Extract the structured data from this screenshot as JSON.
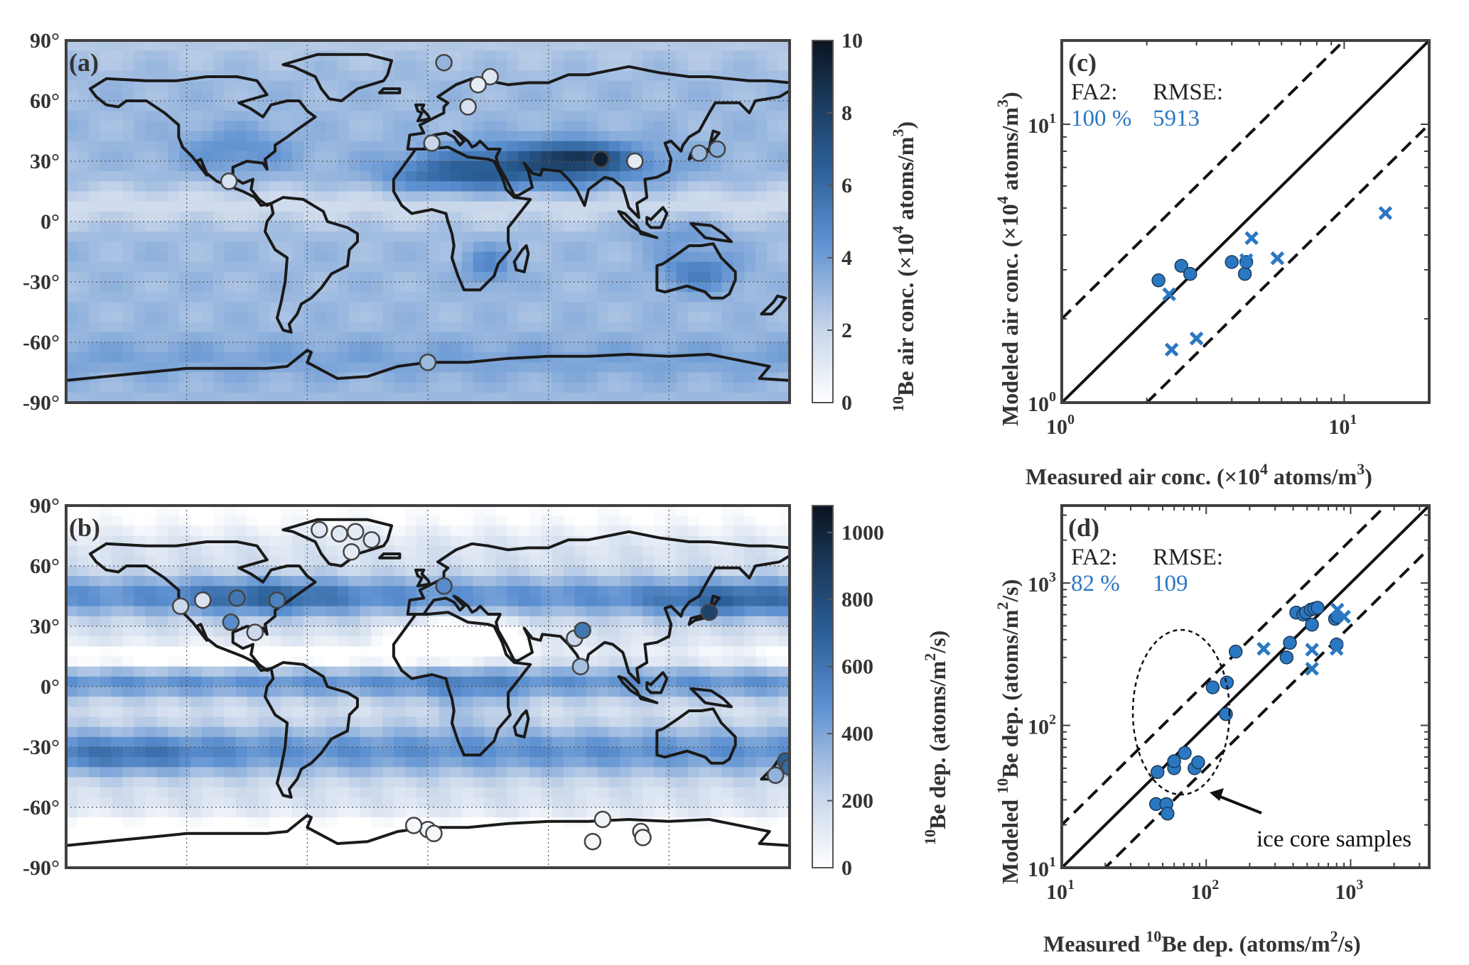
{
  "figure": {
    "panels": {
      "a": {
        "label": "(a)"
      },
      "b": {
        "label": "(b)"
      },
      "c": {
        "label": "(c)"
      },
      "d": {
        "label": "(d)"
      }
    },
    "colors": {
      "accent": "#2a78c2",
      "frame": "#404040",
      "cmap_low": "#ffffff",
      "cmap_mid": "#5b8fd0",
      "cmap_high": "#0b1420"
    }
  },
  "chart_data": [
    {
      "type": "heatmap",
      "panel": "(a)",
      "ylabel_ticks": [
        "90°",
        "60°",
        "30°",
        "0°",
        "-30°",
        "-60°",
        "-90°"
      ],
      "colorbar": {
        "label_pre": "10",
        "label": "Be air conc. (×10",
        "label_sup": "4",
        "label_post": " atoms/m",
        "label_sup2": "3",
        "label_end": ")",
        "ticks": [
          "0",
          "2",
          "4",
          "6",
          "8",
          "10"
        ],
        "range": [
          0,
          10
        ]
      },
      "stations": [
        {
          "lon": 8,
          "lat": 79,
          "v": 3.2
        },
        {
          "lon": 31,
          "lat": 72,
          "v": 1.2
        },
        {
          "lon": 2,
          "lat": 39,
          "v": 2.0
        },
        {
          "lon": -99,
          "lat": 20,
          "v": 1.5
        },
        {
          "lon": 25,
          "lat": 68,
          "v": 0.9
        },
        {
          "lon": 20,
          "lat": 57,
          "v": 1.5
        },
        {
          "lon": 86,
          "lat": 31,
          "v": 9.5
        },
        {
          "lon": 103,
          "lat": 30,
          "v": 1.0
        },
        {
          "lon": 135,
          "lat": 34,
          "v": 3.0
        },
        {
          "lon": 144,
          "lat": 36,
          "v": 3.5
        },
        {
          "lon": 0,
          "lat": -70,
          "v": 3.0
        }
      ]
    },
    {
      "type": "heatmap",
      "panel": "(b)",
      "ylabel_ticks": [
        "90°",
        "60°",
        "30°",
        "0°",
        "-30°",
        "-60°",
        "-90°"
      ],
      "colorbar": {
        "label_pre": "10",
        "label": "Be dep. (atoms/m",
        "label_sup": "2",
        "label_end": "/s)",
        "ticks": [
          "0",
          "200",
          "400",
          "600",
          "800",
          "1000"
        ],
        "range": [
          0,
          1080
        ]
      },
      "stations": [
        {
          "lon": -54,
          "lat": 78,
          "v": 120
        },
        {
          "lon": -44,
          "lat": 76,
          "v": 120
        },
        {
          "lon": -36,
          "lat": 77,
          "v": 100
        },
        {
          "lon": -28,
          "lat": 73,
          "v": 120
        },
        {
          "lon": -38,
          "lat": 67,
          "v": 110
        },
        {
          "lon": -123,
          "lat": 40,
          "v": 200
        },
        {
          "lon": -112,
          "lat": 43,
          "v": 150
        },
        {
          "lon": -95,
          "lat": 44,
          "v": 600
        },
        {
          "lon": -75,
          "lat": 43,
          "v": 550
        },
        {
          "lon": -98,
          "lat": 32,
          "v": 500
        },
        {
          "lon": -86,
          "lat": 27,
          "v": 200
        },
        {
          "lon": 8,
          "lat": 50,
          "v": 500
        },
        {
          "lon": 73,
          "lat": 24,
          "v": 200
        },
        {
          "lon": 77,
          "lat": 28,
          "v": 600
        },
        {
          "lon": 76,
          "lat": 10,
          "v": 300
        },
        {
          "lon": 140,
          "lat": 37,
          "v": 850
        },
        {
          "lon": 173,
          "lat": -44,
          "v": 350
        },
        {
          "lon": 178,
          "lat": -37,
          "v": 700
        },
        {
          "lon": 180,
          "lat": -40,
          "v": 650
        },
        {
          "lon": 0,
          "lat": -71,
          "v": 50
        },
        {
          "lon": -7,
          "lat": -69,
          "v": 40
        },
        {
          "lon": 3,
          "lat": -73,
          "v": 40
        },
        {
          "lon": 87,
          "lat": -66,
          "v": 60
        },
        {
          "lon": 82,
          "lat": -77,
          "v": 40
        },
        {
          "lon": 106,
          "lat": -72,
          "v": 40
        },
        {
          "lon": 107,
          "lat": -75,
          "v": 40
        }
      ]
    },
    {
      "type": "scatter",
      "panel": "(c)",
      "xlabel": "Measured air conc. (×10",
      "xlabel_sup": "4",
      "xlabel_post": " atoms/m",
      "xlabel_sup2": "3",
      "xlabel_end": ")",
      "ylabel": "Modeled air conc. (×10",
      "ylabel_sup": "4",
      "ylabel_post": " atoms/m",
      "ylabel_sup2": "3",
      "ylabel_end": ")",
      "xscale": "log",
      "yscale": "log",
      "xlim": [
        1,
        20
      ],
      "ylim": [
        1,
        20
      ],
      "xticks": [
        {
          "base": "10",
          "exp": "0"
        },
        {
          "base": "10",
          "exp": "1"
        }
      ],
      "yticks": [
        {
          "base": "10",
          "exp": "0"
        },
        {
          "base": "10",
          "exp": "1"
        }
      ],
      "stat_labels": {
        "fa2": "FA2:",
        "rmse": "RMSE:"
      },
      "stat_values": {
        "fa2": "100 %",
        "rmse": "5913"
      },
      "series": [
        {
          "marker": "circle",
          "points": [
            [
              2.2,
              2.75
            ],
            [
              2.65,
              3.1
            ],
            [
              2.85,
              2.9
            ],
            [
              4.0,
              3.2
            ],
            [
              4.45,
              2.9
            ],
            [
              4.5,
              3.2
            ]
          ]
        },
        {
          "marker": "x",
          "points": [
            [
              2.4,
              2.45
            ],
            [
              2.45,
              1.55
            ],
            [
              3.0,
              1.7
            ],
            [
              4.5,
              3.25
            ],
            [
              4.7,
              3.9
            ],
            [
              5.8,
              3.3
            ],
            [
              14.0,
              4.8
            ]
          ]
        }
      ]
    },
    {
      "type": "scatter",
      "panel": "(d)",
      "xlabel_pre": "Measured ",
      "xlabel_sup": "10",
      "xlabel": "Be dep. (atoms/m",
      "xlabel_sup2": "2",
      "xlabel_end": "/s)",
      "ylabel_pre": "Modeled ",
      "ylabel_sup": "10",
      "ylabel": "Be dep. (atoms/m",
      "ylabel_sup2": "2",
      "ylabel_end": "/s)",
      "xscale": "log",
      "yscale": "log",
      "xlim": [
        10,
        3500
      ],
      "ylim": [
        10,
        3500
      ],
      "xticks": [
        {
          "base": "10",
          "exp": "1"
        },
        {
          "base": "10",
          "exp": "2"
        },
        {
          "base": "10",
          "exp": "3"
        }
      ],
      "yticks": [
        {
          "base": "10",
          "exp": "1"
        },
        {
          "base": "10",
          "exp": "2"
        },
        {
          "base": "10",
          "exp": "3"
        }
      ],
      "stat_labels": {
        "fa2": "FA2:",
        "rmse": "RMSE:"
      },
      "stat_values": {
        "fa2": "82 %",
        "rmse": "109"
      },
      "annotation": "ice core samples",
      "series": [
        {
          "marker": "circle",
          "points": [
            [
              46,
              47
            ],
            [
              45,
              28
            ],
            [
              53,
              28
            ],
            [
              54,
              24
            ],
            [
              60,
              50
            ],
            [
              60,
              56
            ],
            [
              71,
              64
            ],
            [
              83,
              50
            ],
            [
              88,
              55
            ],
            [
              111,
              185
            ],
            [
              139,
              200
            ],
            [
              137,
              120
            ],
            [
              160,
              330
            ],
            [
              360,
              300
            ],
            [
              380,
              380
            ],
            [
              420,
              620
            ],
            [
              470,
              600
            ],
            [
              490,
              620
            ],
            [
              530,
              650
            ],
            [
              560,
              660
            ],
            [
              540,
              510
            ],
            [
              590,
              670
            ],
            [
              780,
              560
            ],
            [
              810,
              580
            ],
            [
              800,
              370
            ]
          ]
        },
        {
          "marker": "x",
          "points": [
            [
              250,
              345
            ],
            [
              540,
              340
            ],
            [
              540,
              250
            ],
            [
              800,
              345
            ],
            [
              810,
              650
            ],
            [
              900,
              580
            ]
          ]
        }
      ]
    }
  ]
}
